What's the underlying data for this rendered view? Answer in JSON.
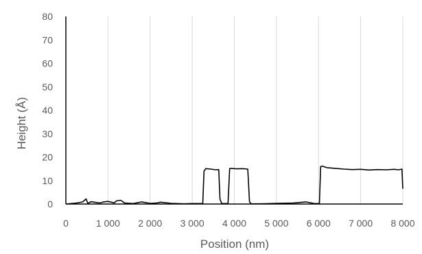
{
  "chart_data": {
    "type": "line",
    "title": "",
    "xlabel": "Position (nm)",
    "ylabel": "Height (Å)",
    "xlim": [
      0,
      8000
    ],
    "ylim": [
      0,
      80
    ],
    "x_ticks": [
      0,
      1000,
      2000,
      3000,
      4000,
      5000,
      6000,
      7000,
      8000
    ],
    "x_tick_labels": [
      "0",
      "1 000",
      "2 000",
      "3 000",
      "4 000",
      "5 000",
      "6 000",
      "7 000",
      "8 000"
    ],
    "y_ticks": [
      0,
      10,
      20,
      30,
      40,
      50,
      60,
      70,
      80
    ],
    "y_tick_labels": [
      "0",
      "10",
      "20",
      "30",
      "40",
      "50",
      "60",
      "70",
      "80"
    ],
    "grid": "vertical",
    "legend": "none",
    "colors": {
      "line": "#000000",
      "grid": "#d9d9d9",
      "axis": "#000000",
      "text": "#595959"
    },
    "series": [
      {
        "x": [
          0,
          250,
          400,
          480,
          520,
          600,
          800,
          900,
          1000,
          1150,
          1200,
          1300,
          1400,
          1600,
          1800,
          2000,
          2150,
          2250,
          2500,
          2800,
          3000,
          3150,
          3250,
          3280,
          3320,
          3450,
          3550,
          3630,
          3660,
          3700,
          3850,
          3890,
          3920,
          4050,
          4200,
          4320,
          4360,
          4400,
          4600,
          5000,
          5400,
          5700,
          5900,
          6000,
          6020,
          6050,
          6080,
          6200,
          6400,
          6600,
          6800,
          7000,
          7200,
          7400,
          7600,
          7800,
          7900,
          7980,
          8000
        ],
        "y": [
          0,
          0.4,
          0.9,
          2.2,
          0.3,
          1.0,
          0.4,
          0.9,
          1.1,
          0.5,
          1.3,
          1.6,
          0.4,
          0.2,
          0.9,
          0.3,
          0.4,
          0.8,
          0.3,
          0.1,
          0.2,
          0.2,
          0.2,
          14.0,
          15.1,
          14.9,
          14.6,
          14.7,
          2.0,
          0.2,
          0.2,
          15.1,
          15.2,
          15.0,
          15.1,
          14.9,
          1.0,
          0.1,
          0.1,
          0.3,
          0.4,
          0.9,
          0.2,
          0.2,
          0.3,
          15.9,
          16.2,
          15.5,
          15.2,
          14.9,
          14.7,
          14.8,
          14.5,
          14.7,
          14.6,
          14.8,
          14.6,
          14.9,
          6.5
        ]
      }
    ]
  }
}
